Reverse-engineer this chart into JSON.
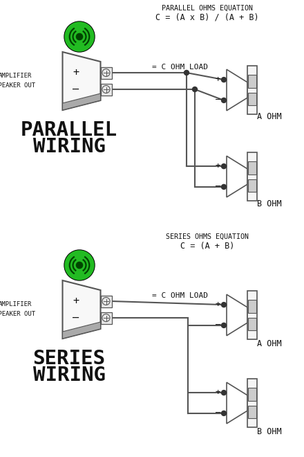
{
  "bg_color": "#ffffff",
  "line_color": "#555555",
  "text_color": "#111111",
  "green_outer": "#22bb22",
  "parallel": {
    "title1": "PARALLEL OHMS EQUATION",
    "title2": "C = (A x B) / (A + B)",
    "label": "= C OHM LOAD",
    "amp_label1": "AMPLIFIER",
    "amp_label2": "SPEAKER OUT",
    "wiring_label1": "PARALLEL",
    "wiring_label2": "WIRING",
    "spk1_label": "A OHM",
    "spk2_label": "B OHM"
  },
  "series": {
    "title1": "SERIES OHMS EQUATION",
    "title2": "C = (A + B)",
    "label": "= C OHM LOAD",
    "amp_label1": "AMPLIFIER",
    "amp_label2": "SPEAKER OUT",
    "wiring_label1": "SERIES",
    "wiring_label2": "WIRING",
    "spk1_label": "A OHM",
    "spk2_label": "B OHM"
  }
}
